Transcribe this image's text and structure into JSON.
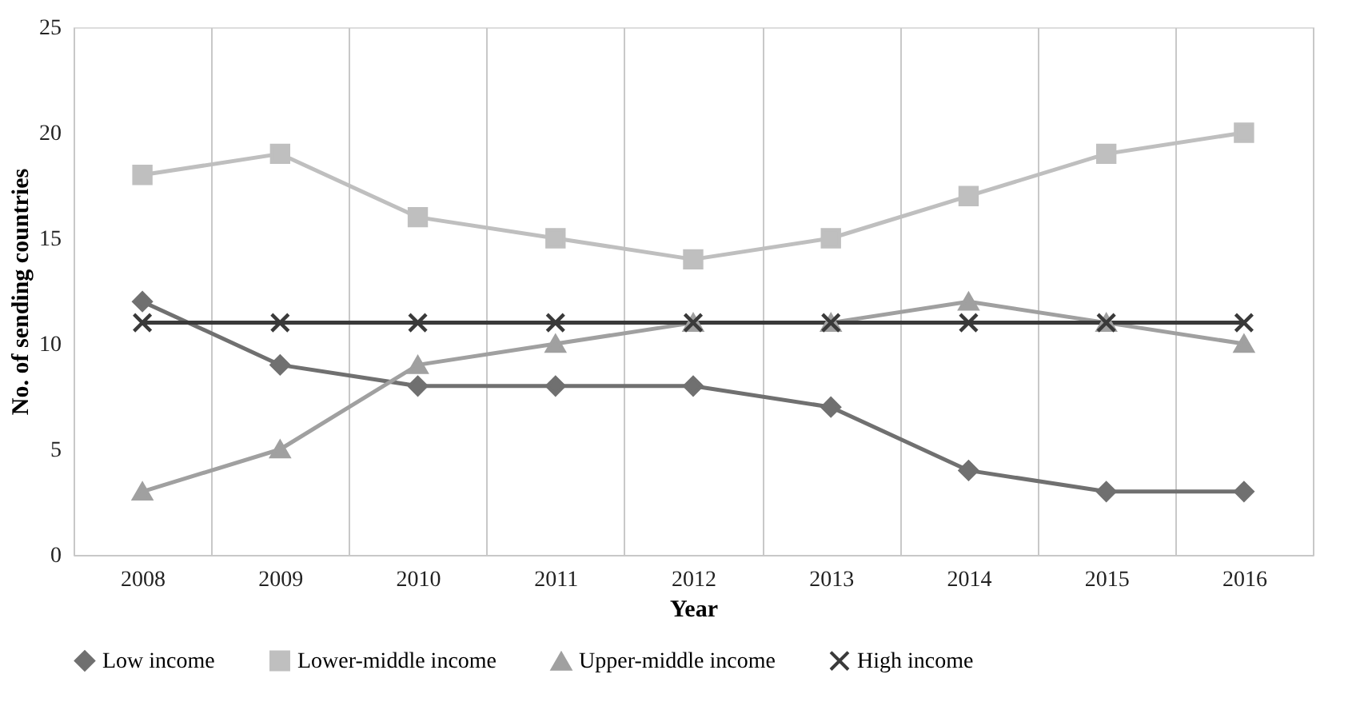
{
  "chart_data": {
    "type": "line",
    "xlabel": "Year",
    "ylabel": "No. of sending countries",
    "categories": [
      "2008",
      "2009",
      "2010",
      "2011",
      "2012",
      "2013",
      "2014",
      "2015",
      "2016"
    ],
    "ylim": [
      0,
      25
    ],
    "yticks": [
      0,
      5,
      10,
      15,
      20,
      25
    ],
    "grid": "x",
    "legend": "bottom",
    "series": [
      {
        "name": "Low income",
        "color": "#707070",
        "marker": "diamond",
        "values": [
          12,
          9,
          8,
          8,
          8,
          7,
          4,
          3,
          3
        ]
      },
      {
        "name": "Lower-middle income",
        "color": "#bfbfbf",
        "marker": "square",
        "values": [
          18,
          19,
          16,
          15,
          14,
          15,
          17,
          19,
          20
        ]
      },
      {
        "name": "Upper-middle income",
        "color": "#a0a0a0",
        "marker": "triangle",
        "values": [
          3,
          5,
          9,
          10,
          11,
          11,
          12,
          11,
          10
        ]
      },
      {
        "name": "High income",
        "color": "#3a3a3a",
        "marker": "cross",
        "values": [
          11,
          11,
          11,
          11,
          11,
          11,
          11,
          11,
          11
        ]
      }
    ]
  }
}
